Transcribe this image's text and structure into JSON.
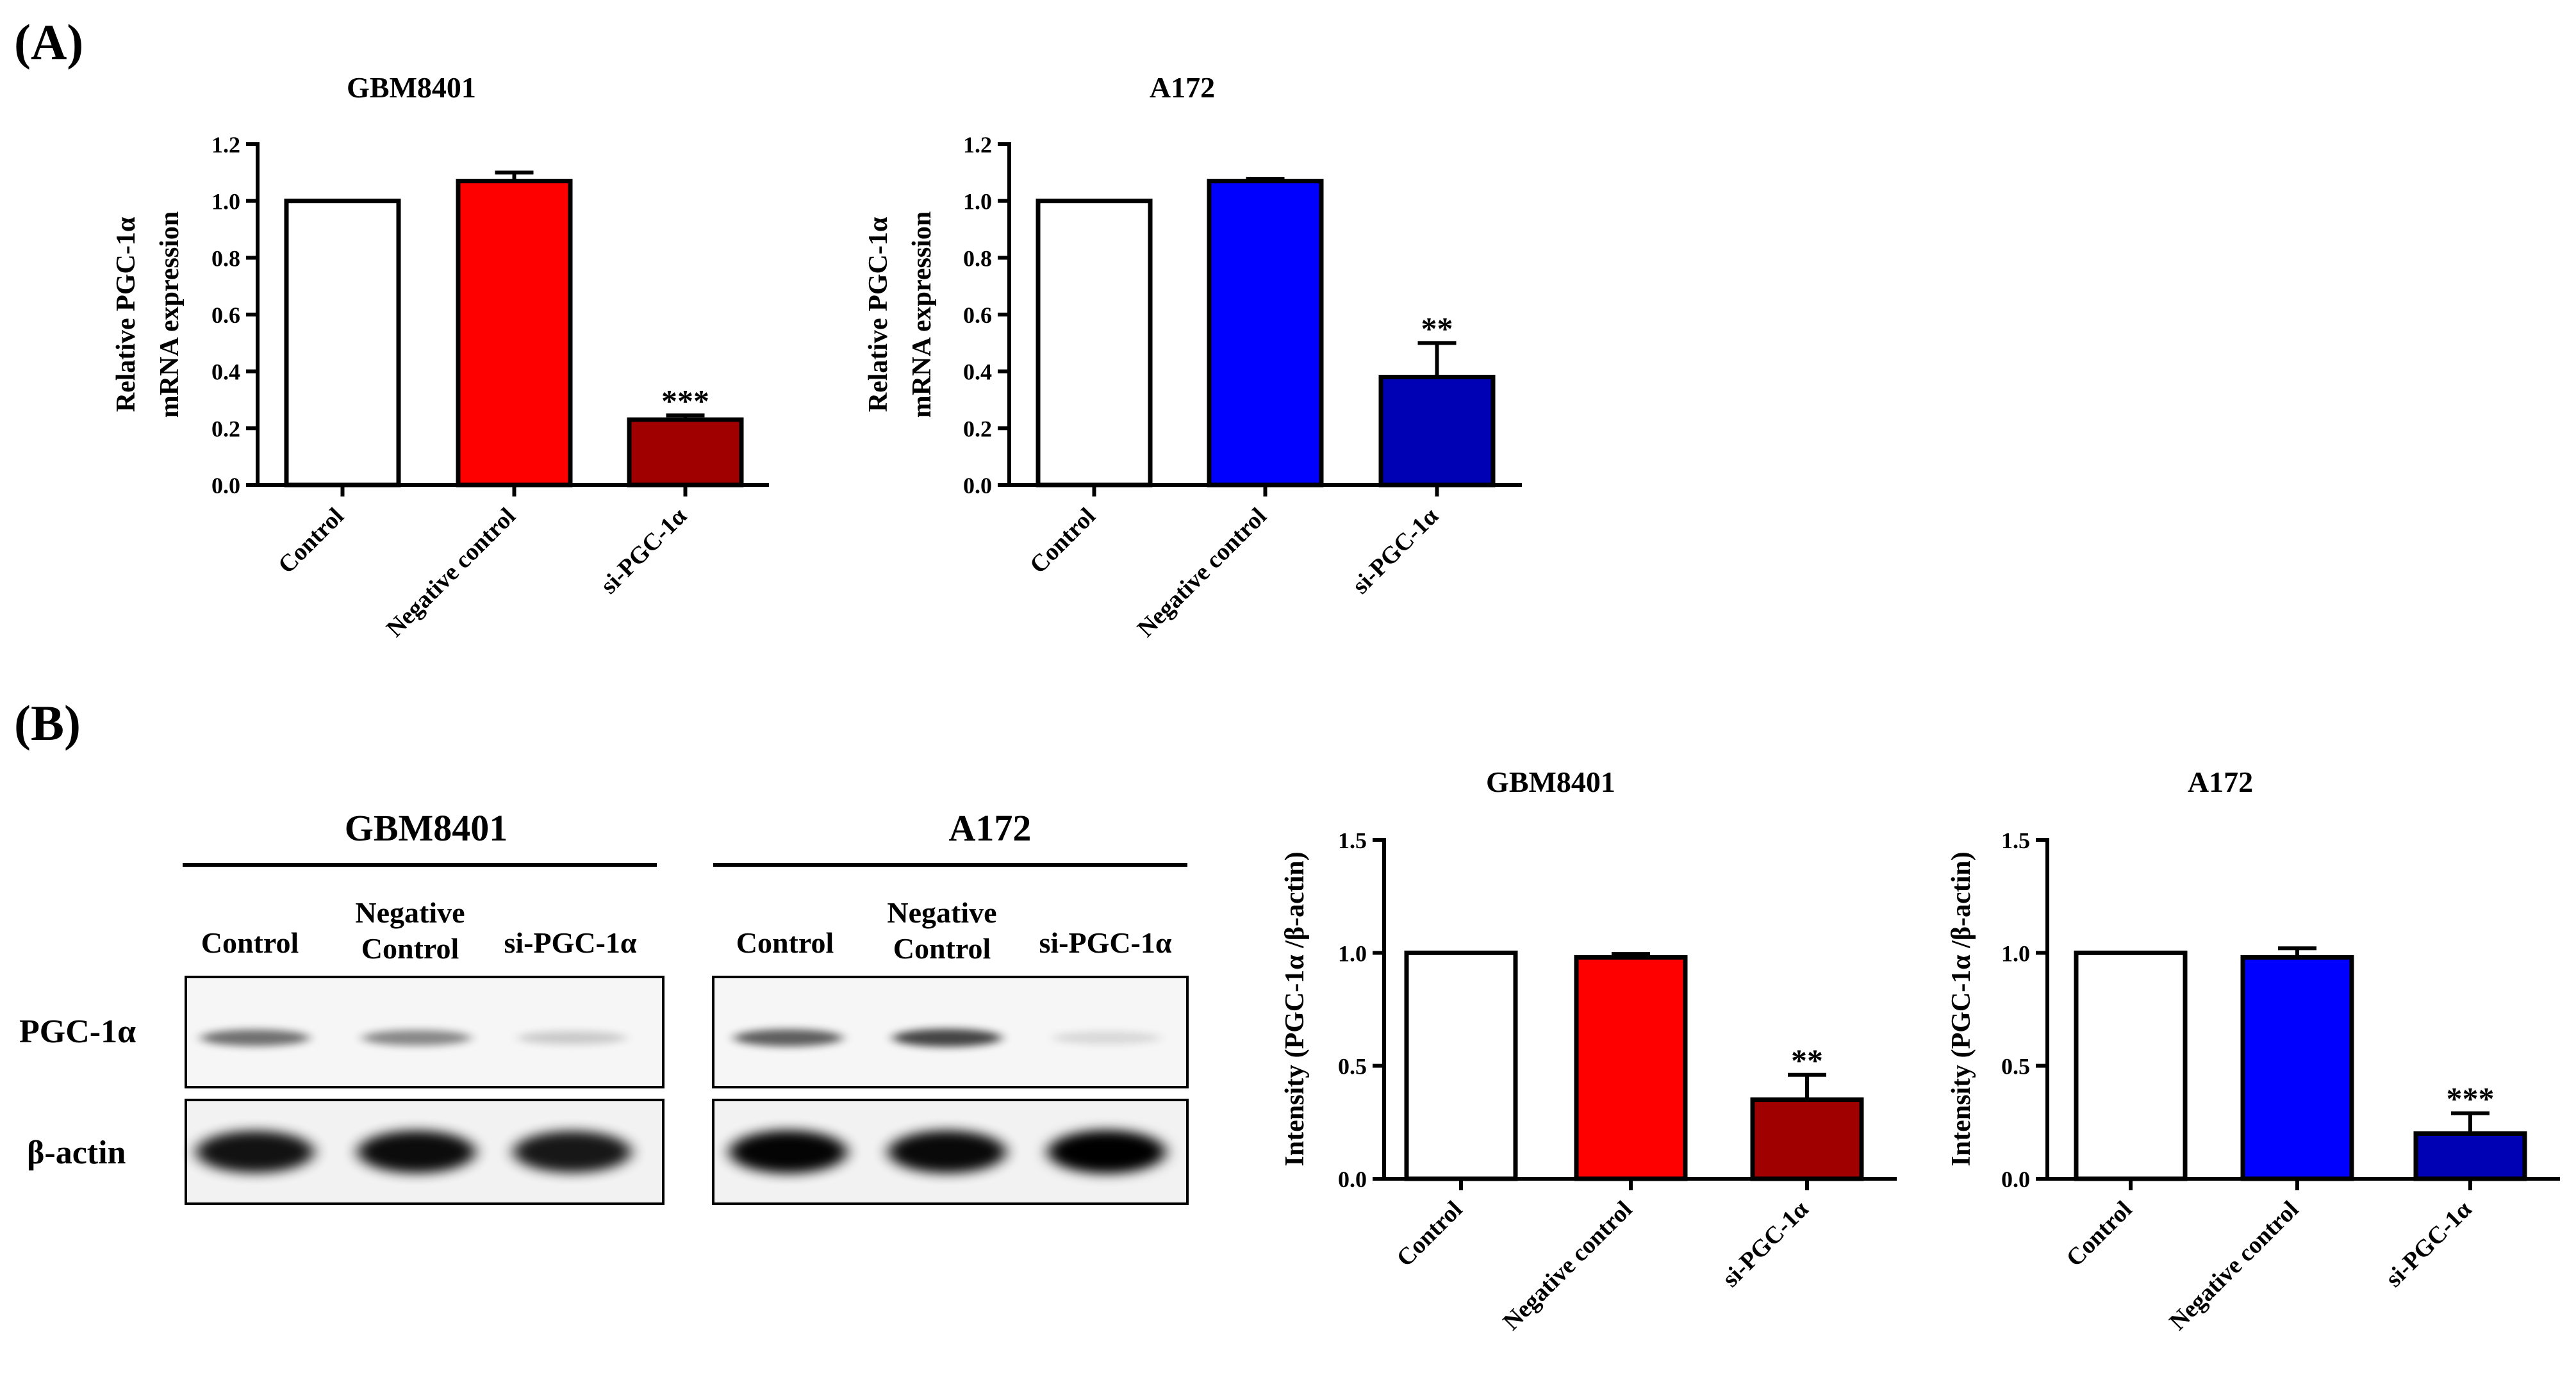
{
  "panels": {
    "a": "(A)",
    "b": "(B)"
  },
  "chart_data": [
    {
      "type": "bar",
      "title": "GBM8401",
      "ylabel": [
        "Relative PGC-1α",
        "mRNA expression"
      ],
      "categories": [
        "Control",
        "Negative control",
        "si-PGC-1α"
      ],
      "values": [
        1.0,
        1.07,
        0.23
      ],
      "errors": [
        0,
        0.03,
        0.015
      ],
      "significance": [
        "",
        "",
        "***"
      ],
      "colors": [
        "#ffffff",
        "#ff0000",
        "#a00000"
      ],
      "ylim": [
        0,
        1.2
      ],
      "yticks": [
        "0.0",
        "0.2",
        "0.4",
        "0.6",
        "0.8",
        "1.0",
        "1.2"
      ]
    },
    {
      "type": "bar",
      "title": "A172",
      "ylabel": [
        "Relative PGC-1α",
        "mRNA expression"
      ],
      "categories": [
        "Control",
        "Negative control",
        "si-PGC-1α"
      ],
      "values": [
        1.0,
        1.07,
        0.38
      ],
      "errors": [
        0,
        0.008,
        0.12
      ],
      "significance": [
        "",
        "",
        "**"
      ],
      "colors": [
        "#ffffff",
        "#0000ff",
        "#0000b4"
      ],
      "ylim": [
        0,
        1.2
      ],
      "yticks": [
        "0.0",
        "0.2",
        "0.4",
        "0.6",
        "0.8",
        "1.0",
        "1.2"
      ]
    },
    {
      "type": "bar",
      "title": "GBM8401",
      "ylabel": [
        "Intensity (PGC-1α /β-actin)"
      ],
      "categories": [
        "Control",
        "Negative control",
        "si-PGC-1α"
      ],
      "values": [
        1.0,
        0.98,
        0.35
      ],
      "errors": [
        0,
        0.015,
        0.11
      ],
      "significance": [
        "",
        "",
        "**"
      ],
      "colors": [
        "#ffffff",
        "#ff0000",
        "#a00000"
      ],
      "ylim": [
        0,
        1.5
      ],
      "yticks": [
        "0.0",
        "0.5",
        "1.0",
        "1.5"
      ]
    },
    {
      "type": "bar",
      "title": "A172",
      "ylabel": [
        "Intensity (PGC-1α /β-actin)"
      ],
      "categories": [
        "Control",
        "Negative control",
        "si-PGC-1α"
      ],
      "values": [
        1.0,
        0.98,
        0.2
      ],
      "errors": [
        0,
        0.04,
        0.09
      ],
      "significance": [
        "",
        "",
        "***"
      ],
      "colors": [
        "#ffffff",
        "#0000ff",
        "#0000b4"
      ],
      "ylim": [
        0,
        1.5
      ],
      "yticks": [
        "0.0",
        "0.5",
        "1.0",
        "1.5"
      ]
    }
  ],
  "western_blot": {
    "groups": [
      {
        "title": "GBM8401",
        "lanes": [
          "Control",
          [
            "Negative",
            "Control"
          ],
          "si-PGC-1α"
        ],
        "pgc_intensity": [
          0.55,
          0.45,
          0.18
        ],
        "actin_intensity": [
          0.92,
          0.95,
          0.9
        ]
      },
      {
        "title": "A172",
        "lanes": [
          "Control",
          [
            "Negative",
            "Control"
          ],
          "si-PGC-1α"
        ],
        "pgc_intensity": [
          0.62,
          0.72,
          0.12
        ],
        "actin_intensity": [
          0.98,
          0.96,
          1.0
        ]
      }
    ],
    "row_labels": [
      "PGC-1α",
      "β-actin"
    ]
  }
}
